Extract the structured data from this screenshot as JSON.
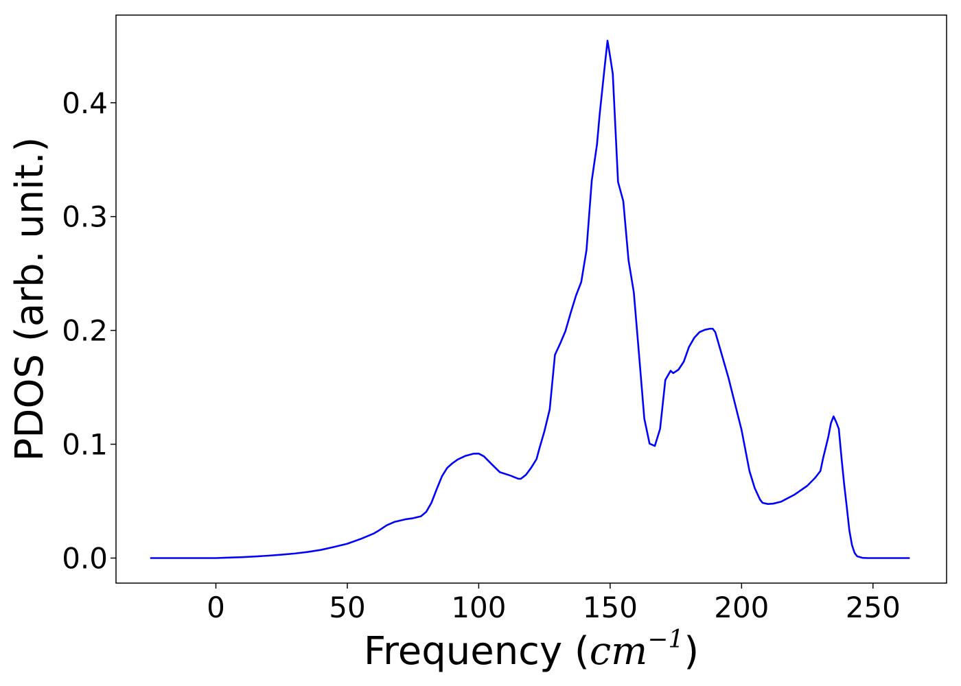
{
  "chart_data": {
    "type": "line",
    "title": "",
    "xlabel_prefix": "Frequency (",
    "xlabel_math_base": "cm",
    "xlabel_math_exp": "−1",
    "xlabel_suffix": ")",
    "ylabel": "PDOS (arb. unit.)",
    "xlim": [
      -38,
      278
    ],
    "ylim": [
      -0.022,
      0.477
    ],
    "xticks": [
      0,
      50,
      100,
      150,
      200,
      250
    ],
    "xtick_labels": [
      "0",
      "50",
      "100",
      "150",
      "200",
      "250"
    ],
    "yticks": [
      0.0,
      0.1,
      0.2,
      0.3,
      0.4
    ],
    "ytick_labels": [
      "0.0",
      "0.1",
      "0.2",
      "0.3",
      "0.4"
    ],
    "grid": false,
    "series": [
      {
        "color": "#0000ff",
        "x": [
          -25,
          0,
          5,
          10,
          15,
          20,
          25,
          30,
          35,
          40,
          45,
          50,
          55,
          60,
          62,
          65,
          68,
          72,
          75,
          78,
          80,
          82,
          84,
          86,
          88,
          90,
          92,
          95,
          98,
          100,
          102,
          105,
          108,
          112,
          115,
          116,
          118,
          120,
          122,
          123,
          125,
          127,
          129,
          131,
          133,
          135,
          137,
          139,
          141,
          143,
          145,
          146,
          148,
          149,
          150,
          151,
          153,
          155,
          157,
          159,
          161,
          163,
          165,
          167,
          169,
          171,
          173,
          174,
          176,
          178,
          180,
          182,
          184,
          186,
          188,
          189,
          190,
          192,
          195,
          200,
          203,
          205,
          207,
          208,
          210,
          212,
          215,
          220,
          225,
          228,
          230,
          231,
          233,
          234,
          235,
          236,
          237,
          238,
          239,
          240,
          241,
          242,
          243,
          244,
          246,
          248,
          264
        ],
        "y": [
          0.0,
          0.0,
          0.0004,
          0.0008,
          0.0014,
          0.0021,
          0.003,
          0.004,
          0.0054,
          0.0072,
          0.0098,
          0.0126,
          0.0167,
          0.0215,
          0.0242,
          0.0288,
          0.0318,
          0.034,
          0.035,
          0.0367,
          0.0405,
          0.0485,
          0.0605,
          0.0718,
          0.0792,
          0.0833,
          0.0866,
          0.0898,
          0.0917,
          0.0918,
          0.0893,
          0.0823,
          0.0755,
          0.0725,
          0.0697,
          0.0696,
          0.0732,
          0.0795,
          0.087,
          0.0956,
          0.1115,
          0.1305,
          0.1785,
          0.1885,
          0.1995,
          0.2155,
          0.2305,
          0.2425,
          0.2705,
          0.3315,
          0.3635,
          0.3895,
          0.4335,
          0.4545,
          0.4405,
          0.4255,
          0.3305,
          0.3135,
          0.2615,
          0.2335,
          0.1785,
          0.1225,
          0.1005,
          0.0985,
          0.1135,
          0.1565,
          0.1645,
          0.1625,
          0.1655,
          0.1725,
          0.1855,
          0.1935,
          0.1985,
          0.2005,
          0.2015,
          0.2015,
          0.1985,
          0.1825,
          0.1585,
          0.1125,
          0.0765,
          0.0615,
          0.0515,
          0.0485,
          0.0475,
          0.0478,
          0.0495,
          0.0555,
          0.0635,
          0.0705,
          0.0765,
          0.0875,
          0.1065,
          0.1185,
          0.1245,
          0.1195,
          0.1135,
          0.0885,
          0.0655,
          0.0455,
          0.0245,
          0.0115,
          0.0045,
          0.0015,
          0.0002,
          0.0,
          0.0
        ]
      }
    ]
  }
}
